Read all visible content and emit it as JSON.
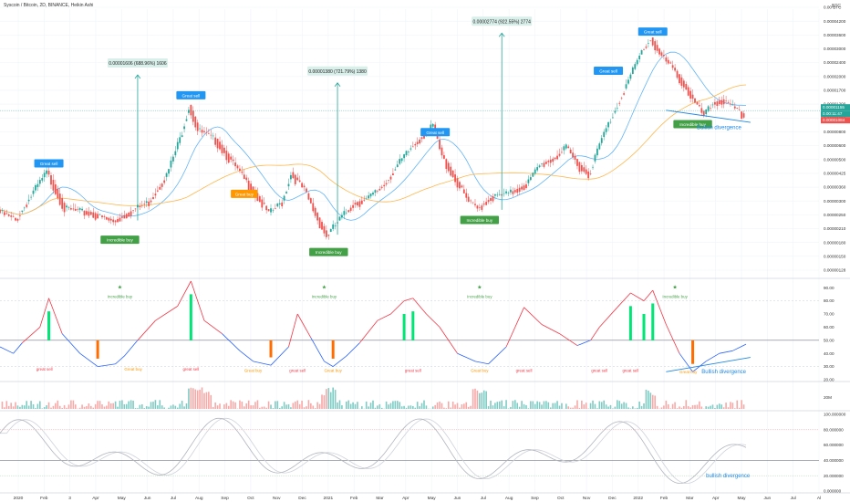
{
  "header": {
    "title": "Syscoin / Bitcoin, 2D, BINANCE, Heikin Ashi",
    "unit": "BTC"
  },
  "colors": {
    "up": "#26a69a",
    "down": "#ef5350",
    "ma_blue": "#64b5f6",
    "ma_orange": "#ffb74d",
    "rsi_red": "#f23645",
    "rsi_blue": "#2962ff",
    "label_blue": "#2196f3",
    "label_green": "#43a047",
    "label_orange": "#ff9800",
    "bull_blue": "#1e88e5",
    "target_bg": "#d9efea"
  },
  "chart_data": {
    "type": "candlestick",
    "x_axis_labels": [
      "2020",
      "Feb",
      "3",
      "Apr",
      "May",
      "Jun",
      "Jul",
      "Aug",
      "Sep",
      "Oct",
      "Nov",
      "Dec",
      "2021",
      "Feb",
      "Mar",
      "Apr",
      "May",
      "Jun",
      "Jul",
      "Aug",
      "Sep",
      "Oct",
      "Nov",
      "Dec",
      "2022",
      "Feb",
      "Mar",
      "Apr",
      "May",
      "Jun",
      "Jul",
      "Al"
    ],
    "price_ticks": [
      "0.00 BTC",
      "0.00004200",
      "0.00003600",
      "0.00003000",
      "0.00002400",
      "0.00002000",
      "0.00001700",
      "0.00001200",
      "0.00000850",
      "0.00000800",
      "0.00000600",
      "0.00000500",
      "0.00000425",
      "0.00000360",
      "0.00000300",
      "0.00000250",
      "0.00000210",
      "0.00000180",
      "0.00000150",
      "0.00000128"
    ],
    "price_scale": "log",
    "current_price_labels": [
      "0.00001155",
      "0.00:11:47",
      "0.00001084"
    ],
    "price_path_btc": [
      [
        0,
        2.9e-06
      ],
      [
        8,
        2.55e-06
      ],
      [
        16,
        3.8e-06
      ],
      [
        22,
        5e-06
      ],
      [
        30,
        3e-06
      ],
      [
        42,
        2.8e-06
      ],
      [
        52,
        2.5e-06
      ],
      [
        62,
        3e-06
      ],
      [
        68,
        3.3e-06
      ],
      [
        76,
        4.8e-06
      ],
      [
        82,
        8e-06
      ],
      [
        86,
        1.25e-05
      ],
      [
        90,
        9e-06
      ],
      [
        98,
        7.8e-06
      ],
      [
        106,
        5.6e-06
      ],
      [
        114,
        4e-06
      ],
      [
        122,
        2.8e-06
      ],
      [
        128,
        3.3e-06
      ],
      [
        132,
        4.9e-06
      ],
      [
        138,
        3.9e-06
      ],
      [
        144,
        2.6e-06
      ],
      [
        148,
        2.05e-06
      ],
      [
        154,
        2.6e-06
      ],
      [
        160,
        3.2e-06
      ],
      [
        166,
        3.4e-06
      ],
      [
        174,
        4.2e-06
      ],
      [
        180,
        5.5e-06
      ],
      [
        186,
        7e-06
      ],
      [
        192,
        8.5e-06
      ],
      [
        196,
        9.5e-06
      ],
      [
        200,
        6.2e-06
      ],
      [
        206,
        4.5e-06
      ],
      [
        212,
        3.3e-06
      ],
      [
        216,
        3e-06
      ],
      [
        222,
        3.5e-06
      ],
      [
        230,
        3.7e-06
      ],
      [
        238,
        4.2e-06
      ],
      [
        244,
        5.5e-06
      ],
      [
        250,
        6e-06
      ],
      [
        256,
        7e-06
      ],
      [
        262,
        5.4e-06
      ],
      [
        266,
        4.8e-06
      ],
      [
        272,
        8e-06
      ],
      [
        278,
        1.2e-05
      ],
      [
        284,
        1.8e-05
      ],
      [
        290,
        2.7e-05
      ],
      [
        294,
        3.2e-05
      ],
      [
        298,
        2.6e-05
      ],
      [
        304,
        2.1e-05
      ],
      [
        310,
        1.6e-05
      ],
      [
        314,
        1.3e-05
      ],
      [
        318,
        1.1e-05
      ],
      [
        322,
        1.3e-05
      ],
      [
        326,
        1.35e-05
      ],
      [
        332,
        1.2e-05
      ],
      [
        336,
        1.084e-05
      ]
    ],
    "overlays": [
      {
        "name": "MA",
        "color": "blue"
      },
      {
        "name": "MA",
        "color": "orange"
      }
    ],
    "price_annotations": [
      {
        "text": "Great sell",
        "kind": "sell",
        "x": 22,
        "price": 5.5e-06
      },
      {
        "text": "Great sell",
        "kind": "sell",
        "x": 86,
        "price": 1.42e-05
      },
      {
        "text": "Great buy",
        "kind": "buy-orange",
        "x": 110,
        "price": 3.6e-06
      },
      {
        "text": "Incredible buy",
        "kind": "buy",
        "x": 54,
        "price": 1.9e-06
      },
      {
        "text": "Incredible buy",
        "kind": "buy",
        "x": 148,
        "price": 1.6e-06
      },
      {
        "text": "Great sell",
        "kind": "sell",
        "x": 196,
        "price": 8.5e-06
      },
      {
        "text": "Incredible buy",
        "kind": "buy",
        "x": 216,
        "price": 2.5e-06
      },
      {
        "text": "Great sell",
        "kind": "sell",
        "x": 274,
        "price": 2e-05
      },
      {
        "text": "Great sell",
        "kind": "sell",
        "x": 294,
        "price": 3.45e-05
      },
      {
        "text": "Incredible buy",
        "kind": "buy",
        "x": 312,
        "price": 9.5e-06
      }
    ],
    "targets": [
      {
        "text": "0.00001606 (688.96%) 1606",
        "x": 62,
        "from": 2.5e-06,
        "to": 1.9e-05
      },
      {
        "text": "0.00001380 (721.79%) 1380",
        "x": 152,
        "from": 2.05e-06,
        "to": 1.7e-05
      },
      {
        "text": "0.00002774 (922.55%) 2774",
        "x": 226,
        "from": 2.9e-06,
        "to": 3.4e-05
      }
    ],
    "bullish_divergence_price": "Bullish divergence",
    "rsi": {
      "ticks": [
        "90.00",
        "80.00",
        "70.00",
        "60.00",
        "50.00",
        "40.00",
        "30.00",
        "20.00"
      ],
      "ylim": [
        20,
        95
      ],
      "level": 50,
      "path": [
        [
          0,
          45
        ],
        [
          6,
          40
        ],
        [
          10,
          48
        ],
        [
          18,
          60
        ],
        [
          22,
          82
        ],
        [
          28,
          55
        ],
        [
          36,
          40
        ],
        [
          44,
          30
        ],
        [
          52,
          32
        ],
        [
          56,
          38
        ],
        [
          62,
          50
        ],
        [
          70,
          65
        ],
        [
          80,
          76
        ],
        [
          86,
          95
        ],
        [
          92,
          65
        ],
        [
          100,
          55
        ],
        [
          108,
          42
        ],
        [
          114,
          34
        ],
        [
          122,
          31
        ],
        [
          130,
          45
        ],
        [
          134,
          70
        ],
        [
          140,
          52
        ],
        [
          146,
          34
        ],
        [
          150,
          30
        ],
        [
          156,
          38
        ],
        [
          162,
          48
        ],
        [
          170,
          65
        ],
        [
          176,
          70
        ],
        [
          182,
          80
        ],
        [
          186,
          82
        ],
        [
          192,
          70
        ],
        [
          198,
          60
        ],
        [
          206,
          40
        ],
        [
          214,
          34
        ],
        [
          220,
          32
        ],
        [
          228,
          45
        ],
        [
          236,
          75
        ],
        [
          244,
          62
        ],
        [
          252,
          55
        ],
        [
          260,
          46
        ],
        [
          266,
          50
        ],
        [
          270,
          60
        ],
        [
          278,
          75
        ],
        [
          284,
          86
        ],
        [
          290,
          80
        ],
        [
          294,
          88
        ],
        [
          300,
          62
        ],
        [
          306,
          40
        ],
        [
          312,
          26
        ],
        [
          318,
          34
        ],
        [
          324,
          40
        ],
        [
          330,
          42
        ],
        [
          336,
          47
        ]
      ],
      "labels": [
        {
          "text": "great sell",
          "x": 20,
          "value": 27,
          "color": "red"
        },
        {
          "text": "Great buy",
          "x": 60,
          "value": 27,
          "color": "orange"
        },
        {
          "text": "great sell",
          "x": 86,
          "value": 27,
          "color": "red"
        },
        {
          "text": "Great buy",
          "x": 114,
          "value": 26,
          "color": "orange"
        },
        {
          "text": "great sell",
          "x": 134,
          "value": 26,
          "color": "red"
        },
        {
          "text": "Great buy",
          "x": 150,
          "value": 26,
          "color": "orange"
        },
        {
          "text": "great sell",
          "x": 186,
          "value": 26,
          "color": "red"
        },
        {
          "text": "Great buy",
          "x": 216,
          "value": 26,
          "color": "orange"
        },
        {
          "text": "great sell",
          "x": 236,
          "value": 26,
          "color": "red"
        },
        {
          "text": "great sell",
          "x": 270,
          "value": 26,
          "color": "red"
        },
        {
          "text": "great sell",
          "x": 284,
          "value": 26,
          "color": "red"
        },
        {
          "text": "Great buy",
          "x": 310,
          "value": 25,
          "color": "orange"
        }
      ],
      "star_labels": [
        {
          "text": "Incredible buy",
          "x": 54,
          "value": 84
        },
        {
          "text": "Incredible buy",
          "x": 146,
          "value": 84
        },
        {
          "text": "Incredible buy",
          "x": 216,
          "value": 84
        },
        {
          "text": "Incredible buy",
          "x": 304,
          "value": 84
        }
      ],
      "bullish_divergence": "Bullish divergence"
    },
    "volume": {
      "tick": "20M"
    },
    "stoch": {
      "ticks": [
        "100.000000",
        "80.000000",
        "60.000000",
        "40.000000",
        "20.000000",
        "0.000000"
      ],
      "ylim": [
        0,
        100
      ],
      "bullish_divergence": "bullish divergence"
    }
  }
}
